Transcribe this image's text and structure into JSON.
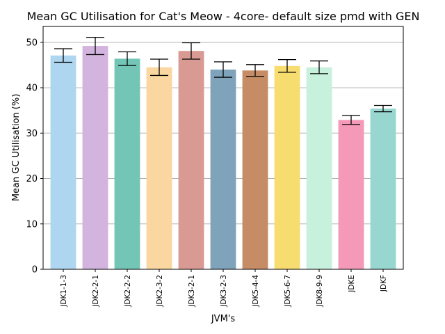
{
  "chart_data": {
    "type": "bar",
    "title": "Mean GC Utilisation for Cat's Meow - 4core- default size pmd with GEN",
    "xlabel": "JVM's",
    "ylabel": "Mean GC Utilisation (%)",
    "ylim": [
      0,
      53.5
    ],
    "yticks": [
      0,
      10,
      20,
      30,
      40,
      50
    ],
    "grid": "horizontal",
    "categories": [
      "JDK1-1-3",
      "JDK2-2-1",
      "JDK2-2-2",
      "JDK2-3-2",
      "JDK3-2-1",
      "JDK3-2-3",
      "JDK5-4-4",
      "JDK5-6-7",
      "JDK8-9-9",
      "JDKE",
      "JDKF"
    ],
    "values": [
      47.1,
      49.2,
      46.4,
      44.5,
      48.1,
      44.0,
      43.8,
      44.8,
      44.5,
      32.9,
      35.4
    ],
    "errors": [
      1.5,
      1.9,
      1.5,
      1.8,
      1.8,
      1.7,
      1.3,
      1.4,
      1.4,
      1.0,
      0.7
    ],
    "colors": [
      "#aed6f1",
      "#d2b4de",
      "#73c6b6",
      "#fad7a0",
      "#d99a94",
      "#7fa3ba",
      "#c58c66",
      "#f7dc6f",
      "#c8f1dd",
      "#f49ab8",
      "#98d7d0"
    ]
  }
}
